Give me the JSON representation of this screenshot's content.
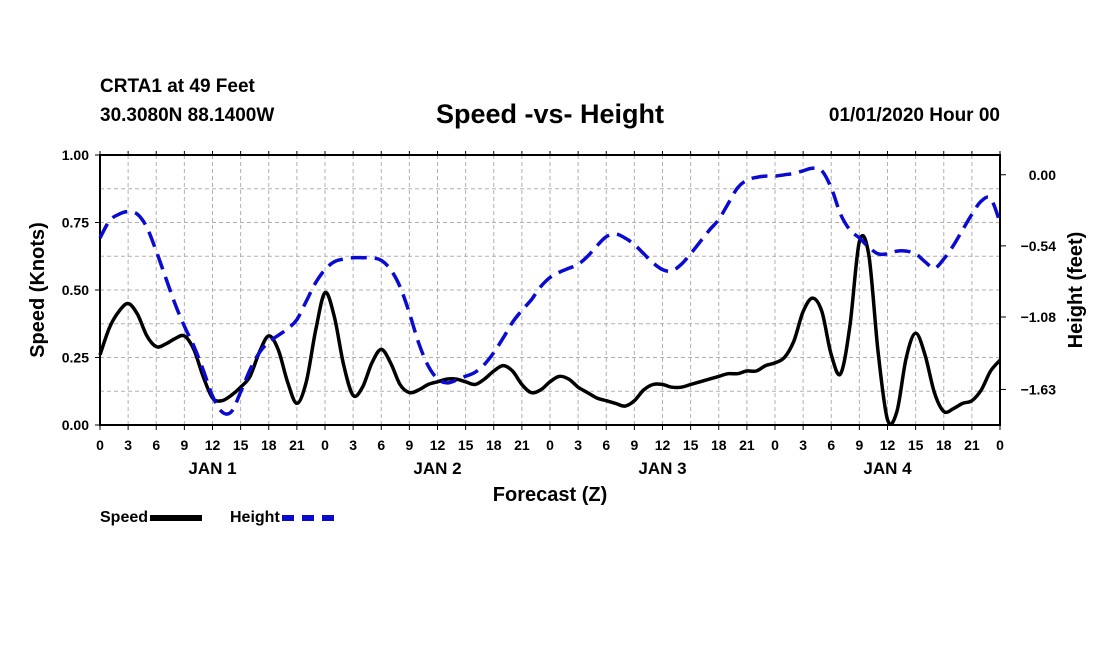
{
  "header": {
    "station": "CRTA1 at 49 Feet",
    "coords": "30.3080N 88.1400W",
    "title": "Speed -vs- Height",
    "run_time": "01/01/2020 Hour 00"
  },
  "legend": {
    "speed_label": "Speed",
    "height_label": "Height"
  },
  "colors": {
    "speed": "#000000",
    "height": "#0a0ad0",
    "grid": "#b0b0b0"
  },
  "chart_data": {
    "type": "line",
    "title": "Speed -vs- Height",
    "xlabel": "Forecast (Z)",
    "ylabel": "Speed (Knots)",
    "y2label": "Height (feet)",
    "xlim": [
      0,
      96
    ],
    "ylim": [
      0,
      1
    ],
    "y2lim": [
      -1.9,
      0.15
    ],
    "x_tick_values": [
      0,
      3,
      6,
      9,
      12,
      15,
      18,
      21,
      24,
      27,
      30,
      33,
      36,
      39,
      42,
      45,
      48,
      51,
      54,
      57,
      60,
      63,
      66,
      69,
      72,
      75,
      78,
      81,
      84,
      87,
      90,
      93,
      96
    ],
    "x_tick_labels": [
      "0",
      "3",
      "6",
      "9",
      "12",
      "15",
      "18",
      "21",
      "0",
      "3",
      "6",
      "9",
      "12",
      "15",
      "18",
      "21",
      "0",
      "3",
      "6",
      "9",
      "12",
      "15",
      "18",
      "21",
      "0",
      "3",
      "6",
      "9",
      "12",
      "15",
      "18",
      "21",
      "0"
    ],
    "day_labels": [
      {
        "x": 12,
        "label": "JAN 1"
      },
      {
        "x": 36,
        "label": "JAN 2"
      },
      {
        "x": 60,
        "label": "JAN 3"
      },
      {
        "x": 84,
        "label": "JAN 4"
      }
    ],
    "y_ticks": [
      {
        "value": 0,
        "label": "0.00"
      },
      {
        "value": 0.25,
        "label": "0.25"
      },
      {
        "value": 0.5,
        "label": "0.50"
      },
      {
        "value": 0.75,
        "label": "0.75"
      },
      {
        "value": 1,
        "label": "1.00"
      }
    ],
    "y2_ticks": [
      {
        "value": 0,
        "label": "0.00"
      },
      {
        "value": -0.54,
        "label": "−0.54"
      },
      {
        "value": -1.08,
        "label": "−1.08"
      },
      {
        "value": -1.63,
        "label": "−1.63"
      }
    ],
    "series": [
      {
        "name": "Speed",
        "axis": "left",
        "style": "solid",
        "x": [
          0,
          1,
          2,
          3,
          4,
          5,
          6,
          7,
          8,
          9,
          10,
          11,
          12,
          13,
          14,
          15,
          16,
          17,
          18,
          19,
          20,
          21,
          22,
          23,
          24,
          25,
          26,
          27,
          28,
          29,
          30,
          31,
          32,
          33,
          34,
          35,
          36,
          37,
          38,
          39,
          40,
          41,
          42,
          43,
          44,
          45,
          46,
          47,
          48,
          49,
          50,
          51,
          52,
          53,
          54,
          55,
          56,
          57,
          58,
          59,
          60,
          61,
          62,
          63,
          64,
          65,
          66,
          67,
          68,
          69,
          70,
          71,
          72,
          73,
          74,
          75,
          76,
          77,
          78,
          79,
          80,
          81,
          82,
          83,
          84,
          85,
          86,
          87,
          88,
          89,
          90,
          91,
          92,
          93,
          94,
          95,
          96
        ],
        "values": [
          0.26,
          0.36,
          0.42,
          0.45,
          0.41,
          0.33,
          0.29,
          0.3,
          0.32,
          0.33,
          0.28,
          0.18,
          0.1,
          0.09,
          0.11,
          0.14,
          0.18,
          0.27,
          0.33,
          0.28,
          0.16,
          0.08,
          0.16,
          0.35,
          0.49,
          0.4,
          0.22,
          0.11,
          0.14,
          0.23,
          0.28,
          0.23,
          0.15,
          0.12,
          0.13,
          0.15,
          0.16,
          0.17,
          0.17,
          0.16,
          0.15,
          0.17,
          0.2,
          0.22,
          0.2,
          0.15,
          0.12,
          0.13,
          0.16,
          0.18,
          0.17,
          0.14,
          0.12,
          0.1,
          0.09,
          0.08,
          0.07,
          0.09,
          0.13,
          0.15,
          0.15,
          0.14,
          0.14,
          0.15,
          0.16,
          0.17,
          0.18,
          0.19,
          0.19,
          0.2,
          0.2,
          0.22,
          0.23,
          0.25,
          0.31,
          0.42,
          0.47,
          0.42,
          0.26,
          0.19,
          0.37,
          0.68,
          0.63,
          0.27,
          0.02,
          0.05,
          0.25,
          0.34,
          0.26,
          0.12,
          0.05,
          0.06,
          0.08,
          0.09,
          0.13,
          0.2,
          0.24
        ]
      },
      {
        "name": "Height",
        "axis": "right",
        "style": "dashed",
        "x": [
          0,
          1,
          2,
          3,
          4,
          5,
          6,
          7,
          8,
          9,
          10,
          11,
          12,
          13,
          14,
          15,
          16,
          17,
          18,
          19,
          20,
          21,
          22,
          23,
          24,
          25,
          26,
          27,
          28,
          29,
          30,
          31,
          32,
          33,
          34,
          35,
          36,
          37,
          38,
          39,
          40,
          41,
          42,
          43,
          44,
          45,
          46,
          47,
          48,
          49,
          50,
          51,
          52,
          53,
          54,
          55,
          56,
          57,
          58,
          59,
          60,
          61,
          62,
          63,
          64,
          65,
          66,
          67,
          68,
          69,
          70,
          71,
          72,
          73,
          74,
          75,
          76,
          77,
          78,
          79,
          80,
          81,
          82,
          83,
          84,
          85,
          86,
          87,
          88,
          89,
          90,
          91,
          92,
          93,
          94,
          95,
          96
        ],
        "values": [
          -0.48,
          -0.35,
          -0.3,
          -0.28,
          -0.3,
          -0.4,
          -0.58,
          -0.78,
          -0.98,
          -1.15,
          -1.3,
          -1.48,
          -1.68,
          -1.8,
          -1.8,
          -1.65,
          -1.48,
          -1.35,
          -1.27,
          -1.22,
          -1.17,
          -1.1,
          -0.96,
          -0.82,
          -0.72,
          -0.66,
          -0.64,
          -0.63,
          -0.63,
          -0.63,
          -0.65,
          -0.72,
          -0.85,
          -1.05,
          -1.28,
          -1.45,
          -1.55,
          -1.58,
          -1.56,
          -1.53,
          -1.5,
          -1.44,
          -1.35,
          -1.24,
          -1.12,
          -1.03,
          -0.95,
          -0.85,
          -0.78,
          -0.74,
          -0.71,
          -0.68,
          -0.62,
          -0.54,
          -0.47,
          -0.45,
          -0.48,
          -0.53,
          -0.6,
          -0.67,
          -0.72,
          -0.73,
          -0.68,
          -0.6,
          -0.51,
          -0.42,
          -0.34,
          -0.22,
          -0.1,
          -0.04,
          -0.02,
          -0.01,
          -0.01,
          0.0,
          0.01,
          0.03,
          0.05,
          0.03,
          -0.1,
          -0.3,
          -0.42,
          -0.48,
          -0.55,
          -0.6,
          -0.6,
          -0.58,
          -0.58,
          -0.6,
          -0.66,
          -0.71,
          -0.64,
          -0.54,
          -0.42,
          -0.3,
          -0.2,
          -0.18,
          -0.36
        ]
      }
    ]
  }
}
